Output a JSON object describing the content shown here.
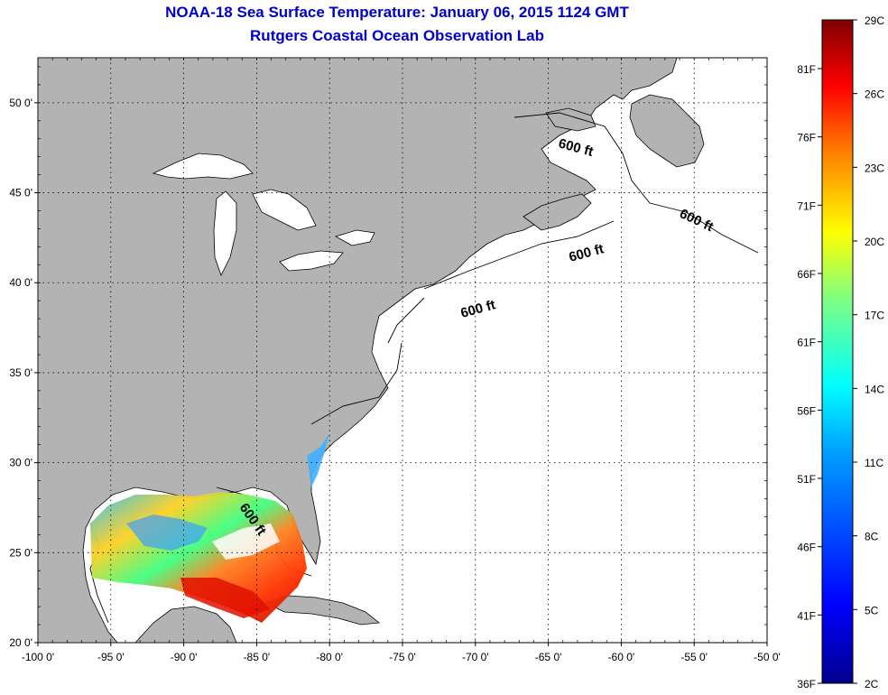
{
  "title": {
    "line1": "NOAA-18 Sea Surface Temperature:  January 06, 2015 1124 GMT",
    "line2": "Rutgers Coastal Ocean Observation Lab"
  },
  "map": {
    "lon_range": [
      -100,
      -50
    ],
    "lat_range": [
      20,
      52.5
    ],
    "lon_ticks": [
      {
        "value": -100,
        "label": "-100 0'"
      },
      {
        "value": -95,
        "label": "-95 0'"
      },
      {
        "value": -90,
        "label": "-90 0'"
      },
      {
        "value": -85,
        "label": "-85 0'"
      },
      {
        "value": -80,
        "label": "-80 0'"
      },
      {
        "value": -75,
        "label": "-75 0'"
      },
      {
        "value": -70,
        "label": "-70 0'"
      },
      {
        "value": -65,
        "label": "-65 0'"
      },
      {
        "value": -60,
        "label": "-60 0'"
      },
      {
        "value": -55,
        "label": "-55 0'"
      },
      {
        "value": -50,
        "label": "-50 0'"
      }
    ],
    "lat_ticks": [
      {
        "value": 50,
        "label": "50 0'"
      },
      {
        "value": 45,
        "label": "45 0'"
      },
      {
        "value": 40,
        "label": "40 0'"
      },
      {
        "value": 35,
        "label": "35 0'"
      },
      {
        "value": 30,
        "label": "30 0'"
      },
      {
        "value": 25,
        "label": "25 0'"
      },
      {
        "value": 20,
        "label": "20 0'"
      }
    ],
    "grid": true,
    "land_color": "#b3b3b3",
    "ocean_color": "#ffffff",
    "contour_labels": [
      "600 ft",
      "600 ft",
      "600 ft",
      "600 ft",
      "600 ft"
    ]
  },
  "colorbar": {
    "celsius_ticks": [
      "29C",
      "26C",
      "23C",
      "20C",
      "17C",
      "14C",
      "11C",
      "8C",
      "5C",
      "2C"
    ],
    "fahrenheit_ticks": [
      "81F",
      "76F",
      "71F",
      "66F",
      "61F",
      "56F",
      "51F",
      "46F",
      "41F",
      "36F"
    ],
    "colors": [
      "#7f0000",
      "#ff0000",
      "#ff8000",
      "#ffff00",
      "#80ff80",
      "#00ffff",
      "#0080ff",
      "#0000ff",
      "#00008f"
    ]
  }
}
